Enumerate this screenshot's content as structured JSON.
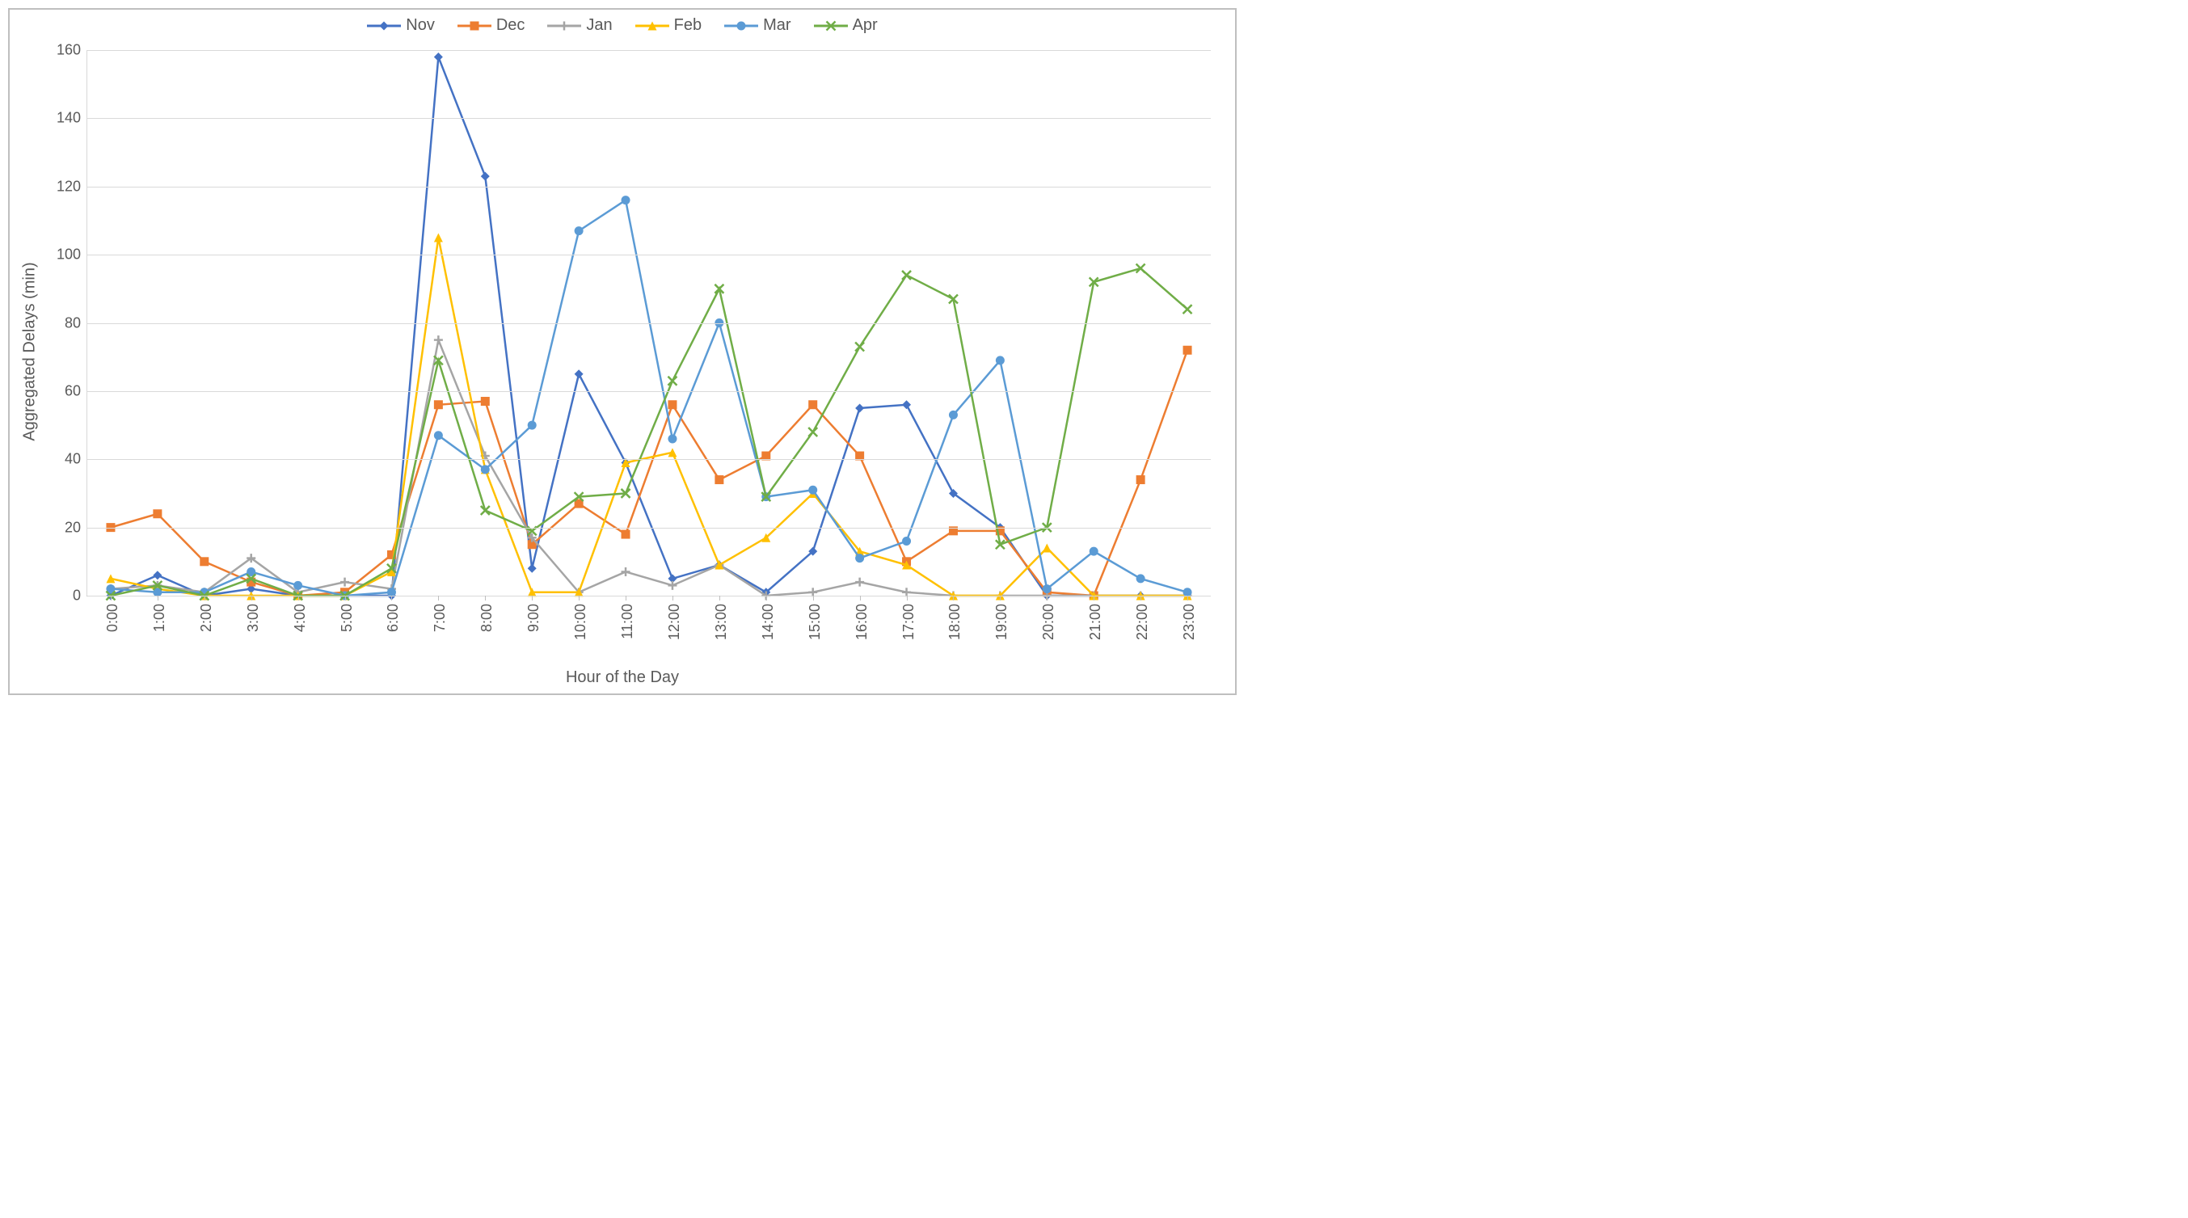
{
  "chart": {
    "type": "line",
    "x_title": "Hour of the Day",
    "y_title": "Aggregated Delays (min)",
    "categories": [
      "0:00",
      "1:00",
      "2:00",
      "3:00",
      "4:00",
      "5:00",
      "6:00",
      "7:00",
      "8:00",
      "9:00",
      "10:00",
      "11:00",
      "12:00",
      "13:00",
      "14:00",
      "15:00",
      "16:00",
      "17:00",
      "18:00",
      "19:00",
      "20:00",
      "21:00",
      "22:00",
      "23:00"
    ],
    "ylim": [
      0,
      160
    ],
    "ytick_step": 20,
    "grid_color": "#d9d9d9",
    "axis_text_color": "#595959",
    "background_color": "#ffffff",
    "border_color": "#bfbfbf",
    "label_fontsize": 18,
    "title_fontsize": 20,
    "line_width": 2.5,
    "marker_size": 11,
    "series": [
      {
        "name": "Nov",
        "color": "#4472c4",
        "marker": "diamond",
        "values": [
          0,
          6,
          0,
          2,
          0,
          0,
          0,
          158,
          123,
          8,
          65,
          39,
          5,
          9,
          1,
          13,
          55,
          56,
          30,
          20,
          0,
          0,
          0,
          0
        ]
      },
      {
        "name": "Dec",
        "color": "#ed7d31",
        "marker": "square",
        "values": [
          20,
          24,
          10,
          4,
          0,
          1,
          12,
          56,
          57,
          15,
          27,
          18,
          56,
          34,
          41,
          56,
          41,
          10,
          19,
          19,
          1,
          0,
          34,
          72
        ]
      },
      {
        "name": "Jan",
        "color": "#a5a5a5",
        "marker": "plus",
        "values": [
          2,
          3,
          1,
          11,
          1,
          4,
          2,
          75,
          41,
          17,
          1,
          7,
          3,
          9,
          0,
          1,
          4,
          1,
          0,
          0,
          0,
          0,
          0,
          0
        ]
      },
      {
        "name": "Feb",
        "color": "#ffc000",
        "marker": "triangle",
        "values": [
          5,
          2,
          0,
          0,
          0,
          0,
          7,
          105,
          37,
          1,
          1,
          39,
          42,
          9,
          17,
          30,
          13,
          9,
          0,
          0,
          14,
          0,
          0,
          0
        ]
      },
      {
        "name": "Mar",
        "color": "#5b9bd5",
        "marker": "circle",
        "values": [
          2,
          1,
          1,
          7,
          3,
          0,
          1,
          47,
          37,
          50,
          107,
          116,
          46,
          80,
          29,
          31,
          11,
          16,
          53,
          69,
          2,
          13,
          5,
          1
        ]
      },
      {
        "name": "Apr",
        "color": "#70ad47",
        "marker": "x",
        "values": [
          0,
          3,
          0,
          5,
          0,
          0,
          8,
          69,
          25,
          19,
          29,
          30,
          63,
          90,
          29,
          48,
          73,
          94,
          87,
          15,
          20,
          92,
          96,
          84
        ]
      }
    ]
  }
}
